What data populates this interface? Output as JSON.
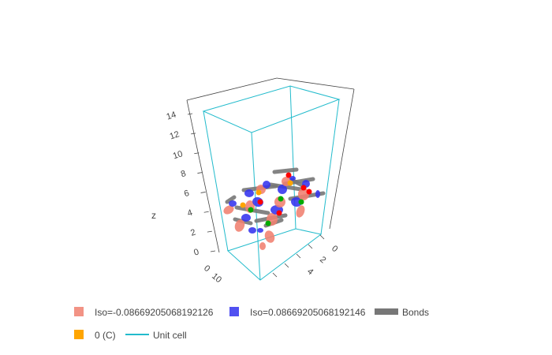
{
  "chart_data": {
    "type": "3d-scatter",
    "title": "",
    "axes": {
      "x": {
        "title": "",
        "ticks": [
          "0",
          "10"
        ]
      },
      "y": {
        "title": "",
        "ticks": [
          "0",
          "2",
          "4"
        ]
      },
      "z": {
        "title": "z",
        "ticks": [
          "0",
          "2",
          "4",
          "6",
          "8",
          "10",
          "12",
          "14"
        ],
        "range": [
          0,
          14
        ]
      }
    },
    "series": [
      {
        "name": "Iso=-0.08669205068192126",
        "kind": "isosurface",
        "color": "#f08070"
      },
      {
        "name": "Iso=0.08669205068192146",
        "kind": "isosurface",
        "color": "#3333ee"
      },
      {
        "name": "Bonds",
        "kind": "lines",
        "color": "#777777"
      },
      {
        "name": "0 (C)",
        "kind": "atoms",
        "color": "#ffa500"
      },
      {
        "name": "Unit cell",
        "kind": "lines",
        "color": "#22bbcc"
      }
    ],
    "atom_colors": [
      "#ffa500",
      "#ff0000",
      "#00aa00"
    ],
    "legend_position": "bottom"
  }
}
